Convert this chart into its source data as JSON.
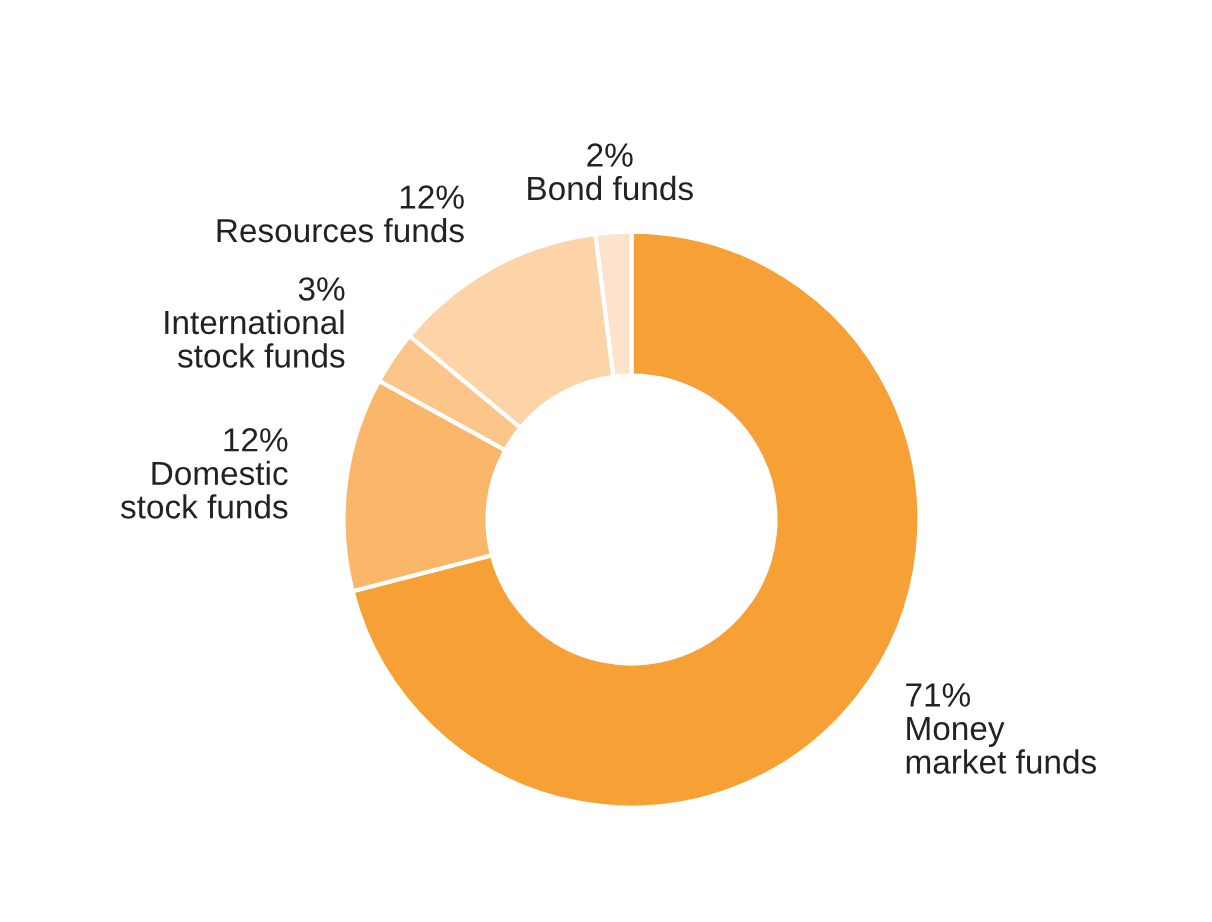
{
  "chart_data": {
    "type": "donut",
    "categories": [
      "Money\nmarket funds",
      "Domestic\nstock funds",
      "International\nstock funds",
      "Resources funds",
      "Bond funds"
    ],
    "values": [
      71,
      12,
      3,
      12,
      2
    ],
    "value_labels": [
      "71%",
      "12%",
      "3%",
      "12%",
      "2%"
    ],
    "colors": [
      "#f7a035",
      "#fbb769",
      "#fcc58a",
      "#fdd3a8",
      "#fde3cc"
    ],
    "legend": false
  }
}
